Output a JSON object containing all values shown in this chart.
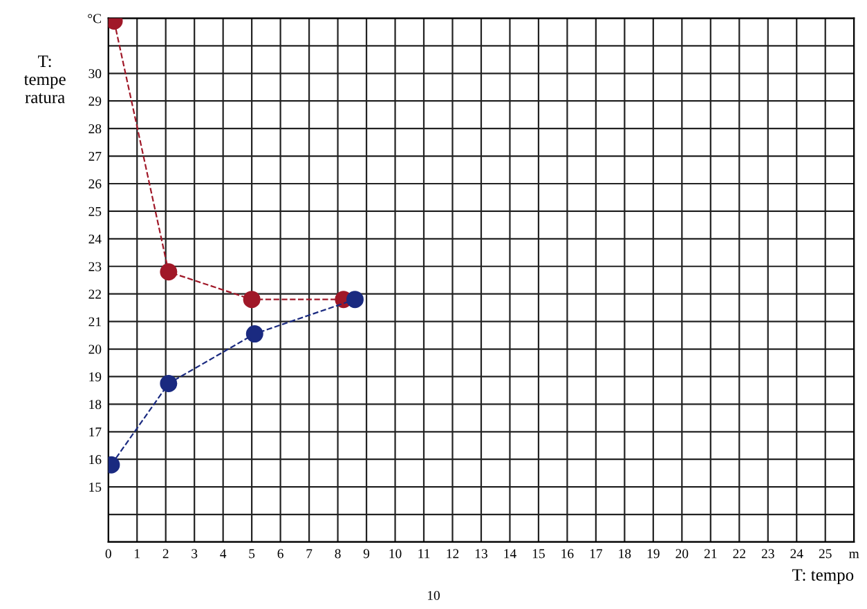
{
  "chart_data": {
    "type": "line",
    "xlabel": "T: tempo",
    "ylabel": "T:\ntempe\nratura",
    "annotations": [
      "10"
    ],
    "series": [
      {
        "color": "#a01828",
        "x": [
          0.2,
          2.1,
          5.0,
          8.2
        ],
        "values": [
          31.9,
          22.8,
          21.8,
          21.8
        ]
      },
      {
        "color": "#1a2a80",
        "x": [
          0.1,
          2.1,
          5.1,
          8.6
        ],
        "values": [
          15.8,
          18.75,
          20.55,
          21.8
        ]
      }
    ],
    "xlim": [
      0,
      26
    ],
    "xticks": [
      0,
      1,
      2,
      3,
      4,
      5,
      6,
      7,
      8,
      9,
      10,
      11,
      12,
      13,
      14,
      15,
      16,
      17,
      18,
      19,
      20,
      21,
      22,
      23,
      24,
      25,
      {
        "value": 26,
        "label": "m"
      }
    ],
    "ylim": [
      13,
      32
    ],
    "yticks": [
      {
        "value": 13,
        "label": null
      },
      {
        "value": 14,
        "label": null
      },
      15,
      16,
      17,
      18,
      19,
      20,
      21,
      22,
      23,
      24,
      25,
      26,
      27,
      28,
      29,
      30,
      {
        "value": 31,
        "label": null
      },
      {
        "value": 32,
        "label": "°C"
      }
    ],
    "grid": true,
    "legend": false,
    "marker": "circle",
    "line_style": "dashed"
  }
}
